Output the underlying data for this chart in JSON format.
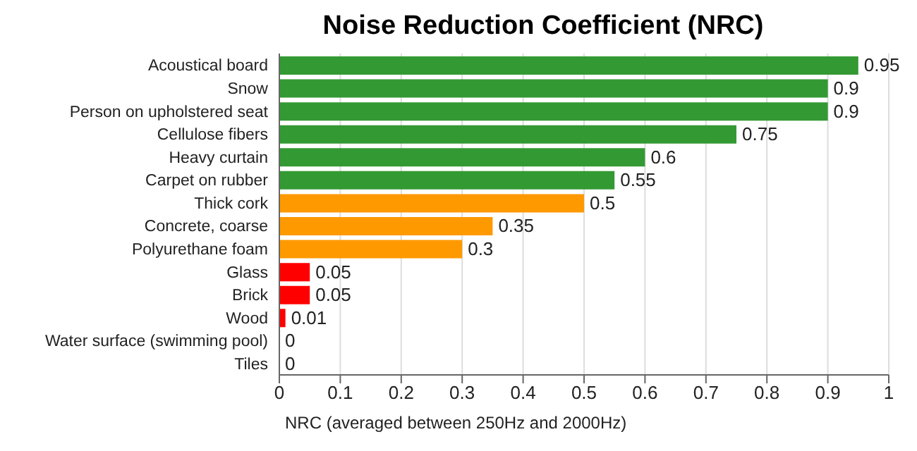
{
  "chart_data": {
    "type": "bar",
    "orientation": "horizontal",
    "title": "Noise Reduction Coefficient (NRC)",
    "xlabel": "NRC (averaged between 250Hz and 2000Hz)",
    "categories": [
      "Acoustical board",
      "Snow",
      "Person on upholstered seat",
      "Cellulose fibers",
      "Heavy curtain",
      "Carpet on rubber",
      "Thick cork",
      "Concrete, coarse",
      "Polyurethane foam",
      "Glass",
      "Brick",
      "Wood",
      "Water surface (swimming pool)",
      "Tiles"
    ],
    "values": [
      0.95,
      0.9,
      0.9,
      0.75,
      0.6,
      0.55,
      0.5,
      0.35,
      0.3,
      0.05,
      0.05,
      0.01,
      0,
      0
    ],
    "colors": [
      "#339933",
      "#339933",
      "#339933",
      "#339933",
      "#339933",
      "#339933",
      "#ff9900",
      "#ff9900",
      "#ff9900",
      "#ff0000",
      "#ff0000",
      "#ff0000",
      "#ff0000",
      "#ff0000"
    ],
    "xlim": [
      0,
      1
    ],
    "xticks": [
      0,
      0.1,
      0.2,
      0.3,
      0.4,
      0.5,
      0.6,
      0.7,
      0.8,
      0.9,
      1
    ],
    "grid": "x",
    "data_labels": true
  }
}
